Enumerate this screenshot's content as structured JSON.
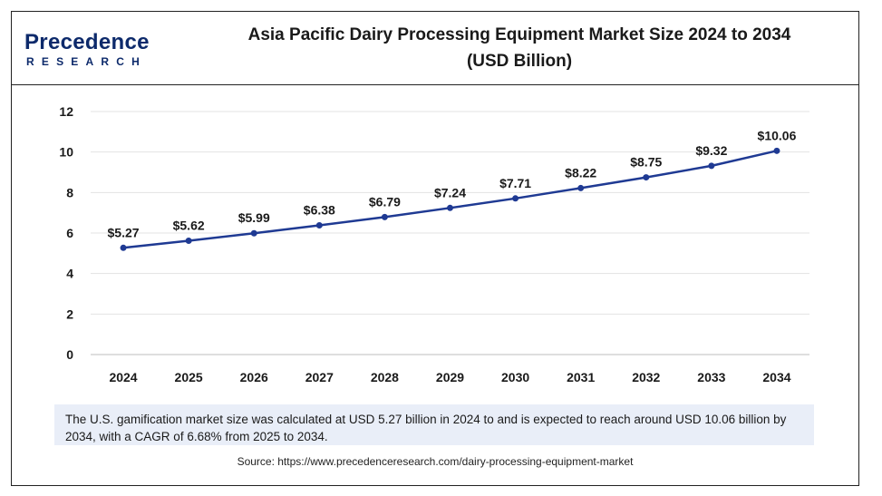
{
  "header": {
    "logo_main": "Precedence",
    "logo_sub": "RESEARCH",
    "title_line1": "Asia Pacific Dairy Processing Equipment Market Size 2024 to 2034",
    "title_line2": "(USD Billion)"
  },
  "chart_data": {
    "type": "line",
    "title": "Asia Pacific Dairy Processing Equipment Market Size 2024 to 2034 (USD Billion)",
    "x": [
      "2024",
      "2025",
      "2026",
      "2027",
      "2028",
      "2029",
      "2030",
      "2031",
      "2032",
      "2033",
      "2034"
    ],
    "series": [
      {
        "values": [
          5.27,
          5.62,
          5.99,
          6.38,
          6.79,
          7.24,
          7.71,
          8.22,
          8.75,
          9.32,
          10.06
        ],
        "labels": [
          "$5.27",
          "$5.62",
          "$5.99",
          "$6.38",
          "$6.79",
          "$7.24",
          "$7.71",
          "$8.22",
          "$8.75",
          "$9.32",
          "$10.06"
        ]
      }
    ],
    "y_ticks": [
      "0",
      "2",
      "4",
      "6",
      "8",
      "10",
      "12"
    ],
    "ylim": [
      0,
      12
    ],
    "grid": true,
    "line_color": "#1f3a93",
    "label_color": "#1a1a1a"
  },
  "note": {
    "text": "The U.S. gamification market size was calculated at USD 5.27 billion in 2024 to and is expected to reach around USD 10.06 billion by 2034, with a CAGR of 6.68% from 2025 to 2034."
  },
  "source": {
    "text": "Source: https://www.precedenceresearch.com/dairy-processing-equipment-market"
  }
}
